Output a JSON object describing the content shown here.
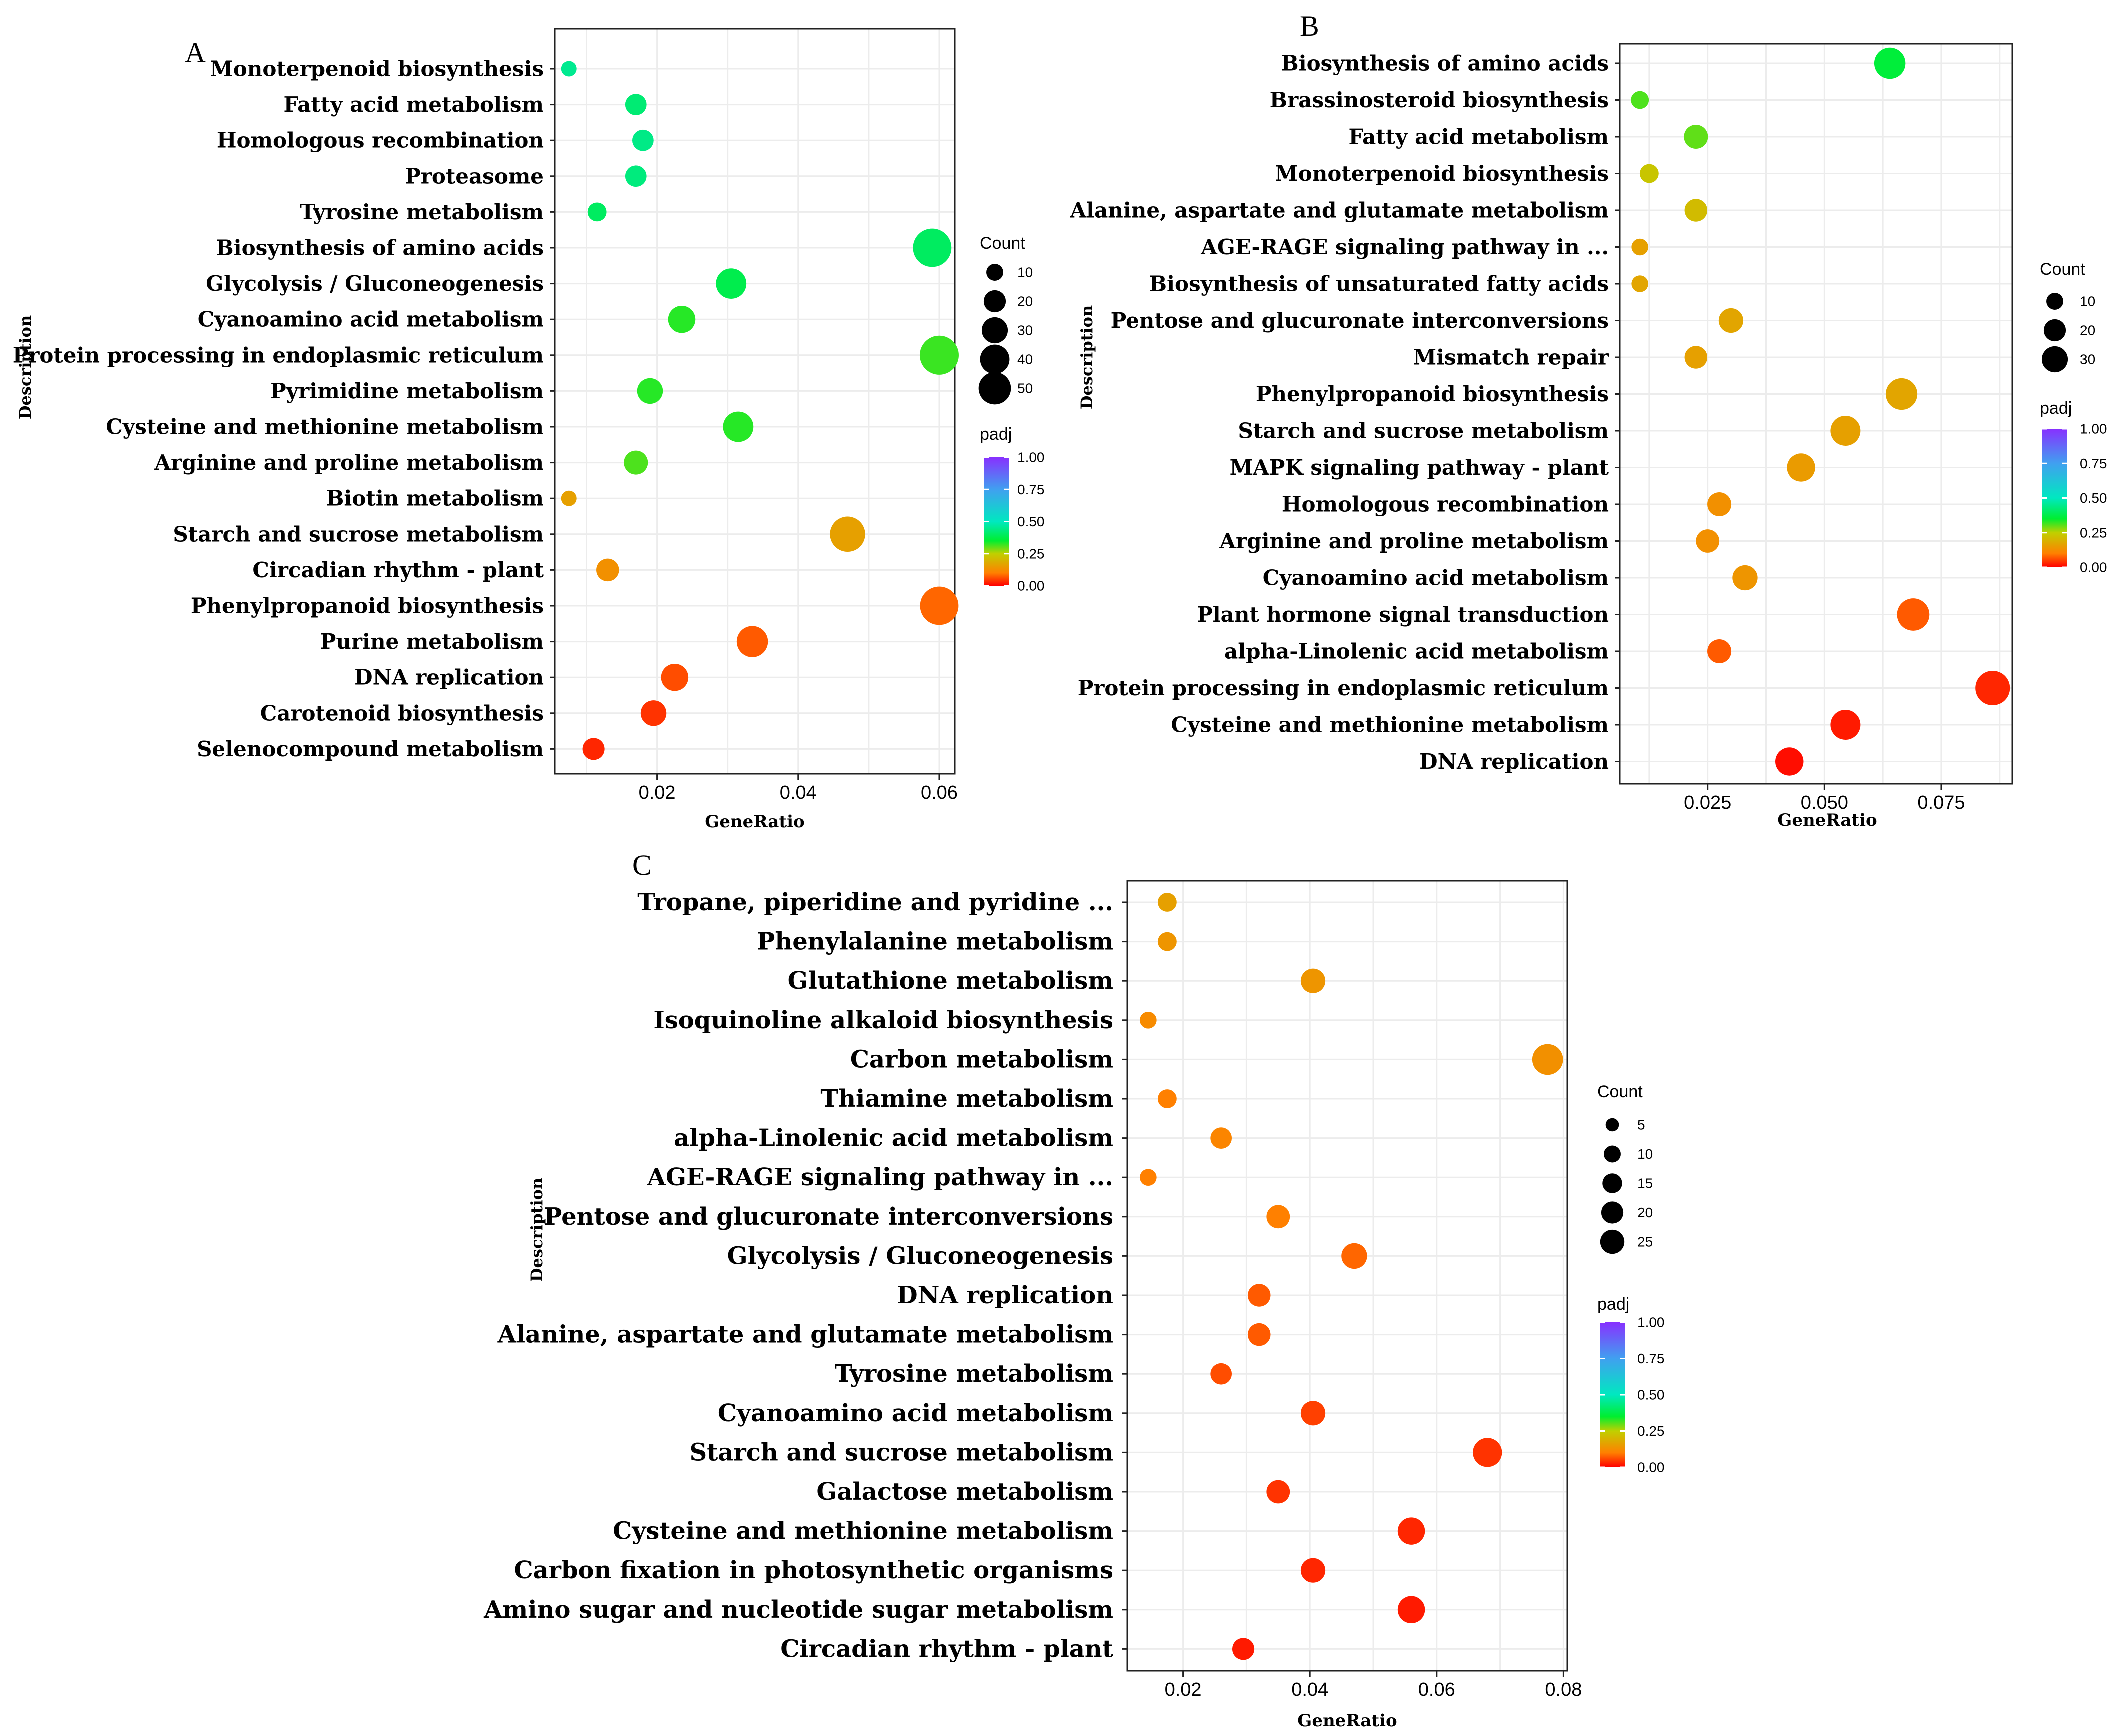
{
  "figure": {
    "panels": [
      "A",
      "B",
      "C"
    ]
  },
  "chart_data": [
    {
      "panel": "A",
      "type": "scatter",
      "xlabel": "GeneRatio",
      "ylabel": "Description",
      "xlim": [
        0.0055,
        0.0622
      ],
      "xticks": [
        0.02,
        0.04,
        0.06
      ],
      "xtick_labels": [
        "0.02",
        "0.04",
        "0.06"
      ],
      "size_legend_title": "Count",
      "size_legend": [
        10,
        20,
        30,
        40,
        50
      ],
      "color_legend_title": "padj",
      "color_legend_ticks": [
        "1.00",
        "0.75",
        "0.50",
        "0.25",
        "0.00"
      ],
      "terms": [
        {
          "term": "Monoterpenoid biosynthesis",
          "gene_ratio": 0.0075,
          "count": 2,
          "padj": 0.45
        },
        {
          "term": "Fatty acid metabolism",
          "gene_ratio": 0.017,
          "count": 8,
          "padj": 0.42
        },
        {
          "term": "Homologous recombination",
          "gene_ratio": 0.018,
          "count": 8,
          "padj": 0.44
        },
        {
          "term": "Proteasome",
          "gene_ratio": 0.017,
          "count": 8,
          "padj": 0.43
        },
        {
          "term": "Tyrosine metabolism",
          "gene_ratio": 0.0115,
          "count": 5,
          "padj": 0.4
        },
        {
          "term": "Biosynthesis of amino acids",
          "gene_ratio": 0.059,
          "count": 48,
          "padj": 0.4
        },
        {
          "term": "Glycolysis / Gluconeogenesis",
          "gene_ratio": 0.0305,
          "count": 25,
          "padj": 0.38
        },
        {
          "term": "Cyanoamino acid metabolism",
          "gene_ratio": 0.0235,
          "count": 18,
          "padj": 0.33
        },
        {
          "term": "Protein processing in endoplasmic reticulum",
          "gene_ratio": 0.06,
          "count": 50,
          "padj": 0.32
        },
        {
          "term": "Pyrimidine metabolism",
          "gene_ratio": 0.019,
          "count": 15,
          "padj": 0.33
        },
        {
          "term": "Cysteine and methionine metabolism",
          "gene_ratio": 0.0315,
          "count": 25,
          "padj": 0.33
        },
        {
          "term": "Arginine and proline metabolism",
          "gene_ratio": 0.017,
          "count": 12,
          "padj": 0.31
        },
        {
          "term": "Biotin metabolism",
          "gene_ratio": 0.0075,
          "count": 2,
          "padj": 0.16
        },
        {
          "term": "Starch and sucrose metabolism",
          "gene_ratio": 0.047,
          "count": 38,
          "padj": 0.16
        },
        {
          "term": "Circadian rhythm - plant",
          "gene_ratio": 0.013,
          "count": 10,
          "padj": 0.13
        },
        {
          "term": "Phenylpropanoid biosynthesis",
          "gene_ratio": 0.06,
          "count": 48,
          "padj": 0.08
        },
        {
          "term": "Purine metabolism",
          "gene_ratio": 0.0335,
          "count": 27,
          "padj": 0.07
        },
        {
          "term": "DNA replication",
          "gene_ratio": 0.0225,
          "count": 18,
          "padj": 0.06
        },
        {
          "term": "Carotenoid biosynthesis",
          "gene_ratio": 0.0195,
          "count": 15,
          "padj": 0.04
        },
        {
          "term": "Selenocompound metabolism",
          "gene_ratio": 0.011,
          "count": 9,
          "padj": 0.03
        }
      ]
    },
    {
      "panel": "B",
      "type": "scatter",
      "xlabel": "GeneRatio",
      "ylabel": "Description",
      "xlim": [
        0.0062,
        0.0902
      ],
      "xticks": [
        0.025,
        0.05,
        0.075
      ],
      "xtick_labels": [
        "0.025",
        "0.050",
        "0.075"
      ],
      "size_legend_title": "Count",
      "size_legend": [
        10,
        20,
        30
      ],
      "color_legend_title": "padj",
      "color_legend_ticks": [
        "1.00",
        "0.75",
        "0.50",
        "0.25",
        "0.00"
      ],
      "terms": [
        {
          "term": "Biosynthesis of amino acids",
          "gene_ratio": 0.064,
          "count": 27,
          "padj": 0.36
        },
        {
          "term": "Brassinosteroid biosynthesis",
          "gene_ratio": 0.0105,
          "count": 4,
          "padj": 0.31
        },
        {
          "term": "Fatty acid metabolism",
          "gene_ratio": 0.0225,
          "count": 12,
          "padj": 0.3
        },
        {
          "term": "Monoterpenoid biosynthesis",
          "gene_ratio": 0.0125,
          "count": 5,
          "padj": 0.23
        },
        {
          "term": "Alanine, aspartate and glutamate metabolism",
          "gene_ratio": 0.0225,
          "count": 10,
          "padj": 0.21
        },
        {
          "term": "AGE-RAGE signaling pathway in ...",
          "gene_ratio": 0.0105,
          "count": 3,
          "padj": 0.16
        },
        {
          "term": "Biosynthesis of unsaturated fatty acids",
          "gene_ratio": 0.0105,
          "count": 3,
          "padj": 0.17
        },
        {
          "term": "Pentose and glucuronate interconversions",
          "gene_ratio": 0.03,
          "count": 13,
          "padj": 0.17
        },
        {
          "term": "Mismatch repair",
          "gene_ratio": 0.0225,
          "count": 10,
          "padj": 0.16
        },
        {
          "term": "Phenylpropanoid biosynthesis",
          "gene_ratio": 0.0665,
          "count": 28,
          "padj": 0.17
        },
        {
          "term": "Starch and sucrose metabolism",
          "gene_ratio": 0.0545,
          "count": 24,
          "padj": 0.16
        },
        {
          "term": "MAPK signaling pathway - plant",
          "gene_ratio": 0.045,
          "count": 20,
          "padj": 0.15
        },
        {
          "term": "Homologous recombination",
          "gene_ratio": 0.0275,
          "count": 12,
          "padj": 0.13
        },
        {
          "term": "Arginine and proline metabolism",
          "gene_ratio": 0.025,
          "count": 11,
          "padj": 0.13
        },
        {
          "term": "Cyanoamino acid metabolism",
          "gene_ratio": 0.033,
          "count": 14,
          "padj": 0.14
        },
        {
          "term": "Plant hormone signal transduction",
          "gene_ratio": 0.069,
          "count": 30,
          "padj": 0.07
        },
        {
          "term": "alpha-Linolenic acid metabolism",
          "gene_ratio": 0.0275,
          "count": 12,
          "padj": 0.07
        },
        {
          "term": "Protein processing in endoplasmic reticulum",
          "gene_ratio": 0.086,
          "count": 36,
          "padj": 0.03
        },
        {
          "term": "Cysteine and methionine metabolism",
          "gene_ratio": 0.0545,
          "count": 24,
          "padj": 0.02
        },
        {
          "term": "DNA replication",
          "gene_ratio": 0.0425,
          "count": 20,
          "padj": 0.01
        }
      ]
    },
    {
      "panel": "C",
      "type": "scatter",
      "xlabel": "GeneRatio",
      "ylabel": "Description",
      "xlim": [
        0.0112,
        0.0806
      ],
      "xticks": [
        0.02,
        0.04,
        0.06,
        0.08
      ],
      "xtick_labels": [
        "0.02",
        "0.04",
        "0.06",
        "0.08"
      ],
      "size_legend_title": "Count",
      "size_legend": [
        5,
        10,
        15,
        20,
        25
      ],
      "color_legend_title": "padj",
      "color_legend_ticks": [
        "1.00",
        "0.75",
        "0.50",
        "0.25",
        "0.00"
      ],
      "terms": [
        {
          "term": "Tropane, piperidine and pyridine ...",
          "gene_ratio": 0.0175,
          "count": 5,
          "padj": 0.16
        },
        {
          "term": "Phenylalanine metabolism",
          "gene_ratio": 0.0175,
          "count": 5,
          "padj": 0.14
        },
        {
          "term": "Glutathione metabolism",
          "gene_ratio": 0.0405,
          "count": 13,
          "padj": 0.14
        },
        {
          "term": "Isoquinoline alkaloid biosynthesis",
          "gene_ratio": 0.0145,
          "count": 3,
          "padj": 0.12
        },
        {
          "term": "Carbon metabolism",
          "gene_ratio": 0.0775,
          "count": 26,
          "padj": 0.13
        },
        {
          "term": "Thiamine metabolism",
          "gene_ratio": 0.0175,
          "count": 5,
          "padj": 0.1
        },
        {
          "term": "alpha-Linolenic acid metabolism",
          "gene_ratio": 0.026,
          "count": 8,
          "padj": 0.11
        },
        {
          "term": "AGE-RAGE signaling pathway in  ...",
          "gene_ratio": 0.0145,
          "count": 3,
          "padj": 0.1
        },
        {
          "term": "Pentose and glucuronate interconversions",
          "gene_ratio": 0.035,
          "count": 11,
          "padj": 0.1
        },
        {
          "term": "Glycolysis / Gluconeogenesis",
          "gene_ratio": 0.047,
          "count": 15,
          "padj": 0.08
        },
        {
          "term": "DNA replication",
          "gene_ratio": 0.032,
          "count": 10,
          "padj": 0.07
        },
        {
          "term": "Alanine, aspartate and glutamate metabolism",
          "gene_ratio": 0.032,
          "count": 10,
          "padj": 0.07
        },
        {
          "term": "Tyrosine metabolism",
          "gene_ratio": 0.026,
          "count": 8,
          "padj": 0.06
        },
        {
          "term": "Cyanoamino acid metabolism",
          "gene_ratio": 0.0405,
          "count": 13,
          "padj": 0.05
        },
        {
          "term": "Starch and sucrose metabolism",
          "gene_ratio": 0.068,
          "count": 22,
          "padj": 0.04
        },
        {
          "term": "Galactose metabolism",
          "gene_ratio": 0.035,
          "count": 11,
          "padj": 0.04
        },
        {
          "term": "Cysteine and methionine metabolism",
          "gene_ratio": 0.056,
          "count": 18,
          "padj": 0.03
        },
        {
          "term": "Carbon fixation in photosynthetic organisms",
          "gene_ratio": 0.0405,
          "count": 13,
          "padj": 0.03
        },
        {
          "term": "Amino sugar and nucleotide sugar metabolism",
          "gene_ratio": 0.056,
          "count": 18,
          "padj": 0.02
        },
        {
          "term": "Circadian rhythm - plant",
          "gene_ratio": 0.0295,
          "count": 9,
          "padj": 0.02
        }
      ]
    }
  ]
}
